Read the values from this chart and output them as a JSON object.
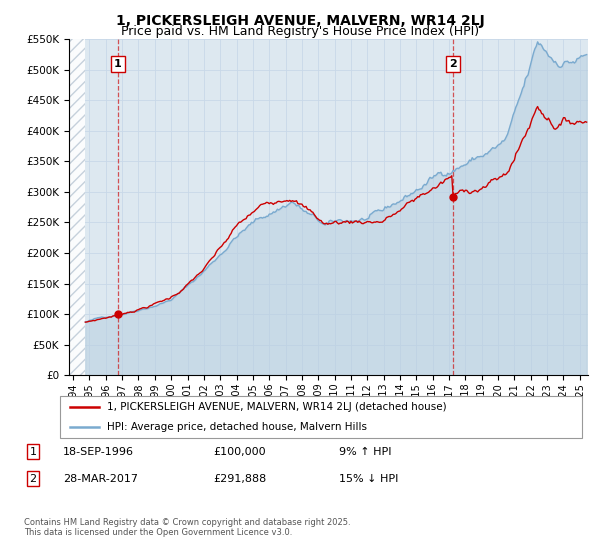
{
  "title": "1, PICKERSLEIGH AVENUE, MALVERN, WR14 2LJ",
  "subtitle": "Price paid vs. HM Land Registry's House Price Index (HPI)",
  "ylim": [
    0,
    550000
  ],
  "xlim_start": 1993.75,
  "xlim_end": 2025.5,
  "yticks": [
    0,
    50000,
    100000,
    150000,
    200000,
    250000,
    300000,
    350000,
    400000,
    450000,
    500000,
    550000
  ],
  "ytick_labels": [
    "£0",
    "£50K",
    "£100K",
    "£150K",
    "£200K",
    "£250K",
    "£300K",
    "£350K",
    "£400K",
    "£450K",
    "£500K",
    "£550K"
  ],
  "xticks": [
    1994,
    1995,
    1996,
    1997,
    1998,
    1999,
    2000,
    2001,
    2002,
    2003,
    2004,
    2005,
    2006,
    2007,
    2008,
    2009,
    2010,
    2011,
    2012,
    2013,
    2014,
    2015,
    2016,
    2017,
    2018,
    2019,
    2020,
    2021,
    2022,
    2023,
    2024,
    2025
  ],
  "grid_color": "#c8d8e8",
  "plot_bg_color": "#dde8f0",
  "hatch_color": "#c0ccd8",
  "sale_color": "#cc0000",
  "hpi_color": "#7aaacf",
  "hpi_fill_color": "#b8cfe0",
  "marker1_date": 1996.72,
  "marker1_price": 100000,
  "marker2_date": 2017.24,
  "marker2_price": 291888,
  "vline1_date": 1996.72,
  "vline2_date": 2017.24,
  "data_start": 1995.0,
  "legend_label1": "1, PICKERSLEIGH AVENUE, MALVERN, WR14 2LJ (detached house)",
  "legend_label2": "HPI: Average price, detached house, Malvern Hills",
  "copyright": "Contains HM Land Registry data © Crown copyright and database right 2025.\nThis data is licensed under the Open Government Licence v3.0.",
  "title_fontsize": 10,
  "subtitle_fontsize": 9
}
